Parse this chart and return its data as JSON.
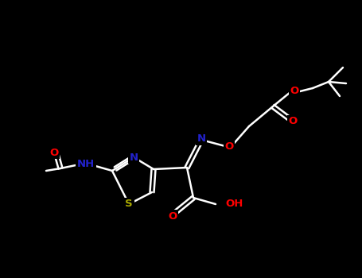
{
  "bg_color": "#000000",
  "bond_lw": 1.8,
  "atom_colors": {
    "N": "#2222cc",
    "O": "#ff0000",
    "S": "#aaaa00",
    "C": "#ffffff",
    "H": "#ffffff"
  },
  "font_size": 9.5,
  "figsize": [
    4.55,
    3.5
  ],
  "dpi": 100
}
